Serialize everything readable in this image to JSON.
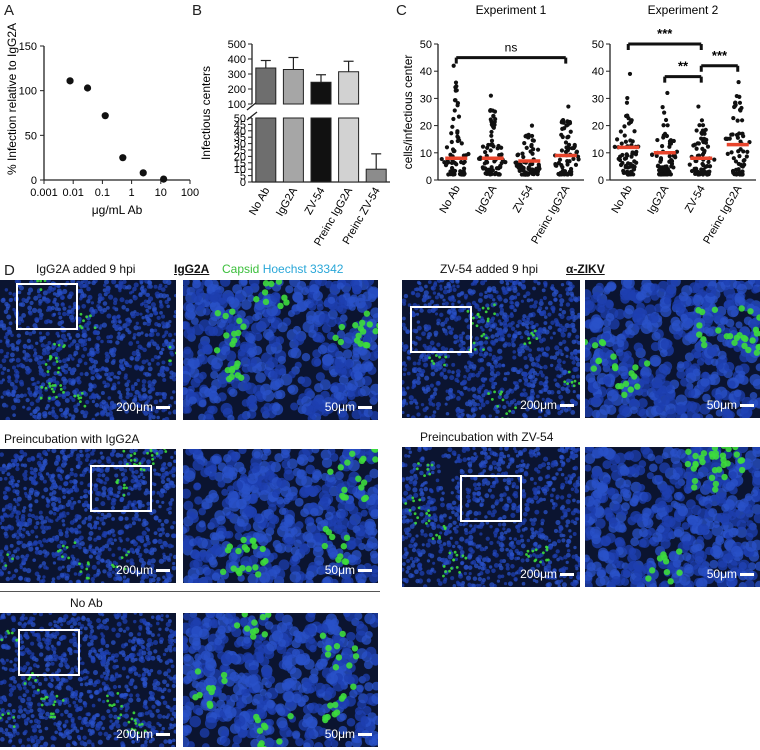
{
  "panels": {
    "A": "A",
    "B": "B",
    "C": "C",
    "D": "D"
  },
  "chart_data": [
    {
      "type": "scatter",
      "panel": "A",
      "xlabel": "μg/mL Ab",
      "ylabel": "% Infection relative to IgG2A",
      "xscale": "log",
      "xlim": [
        0.001,
        100
      ],
      "ylim": [
        0,
        150
      ],
      "xticks": [
        "0.001",
        "0.01",
        "0.1",
        "1",
        "10",
        "100"
      ],
      "yticks": [
        "0",
        "50",
        "100",
        "150"
      ],
      "x": [
        0.0078,
        0.031,
        0.125,
        0.5,
        2.5,
        12.5
      ],
      "y": [
        111,
        103,
        72,
        25,
        8,
        1
      ]
    },
    {
      "type": "bar",
      "panel": "B",
      "ylabel": "Infectious centers",
      "categories": [
        "No Ab",
        "IgG2A",
        "ZV-54",
        "Preinc IgG2A",
        "Preinc ZV-54"
      ],
      "values": [
        340,
        330,
        245,
        315,
        10
      ],
      "errors": [
        50,
        80,
        50,
        70,
        12
      ],
      "bar_colors": [
        "#6e6e6e",
        "#a6a6a6",
        "#111111",
        "#d2d2d2",
        "#8c8c8c"
      ],
      "broken_axis": true,
      "yticks_upper": [
        "100",
        "200",
        "300",
        "400",
        "500"
      ],
      "yticks_lower": [
        "0",
        "5",
        "10",
        "15",
        "20",
        "25",
        "30",
        "35",
        "40",
        "45",
        "50"
      ]
    },
    {
      "type": "scatter",
      "panel": "C",
      "title": "Experiment 1",
      "ylabel": "cells/infectious center",
      "categories": [
        "No Ab",
        "IgG2A",
        "ZV-54",
        "Preinc IgG2A"
      ],
      "ylim": [
        0,
        50
      ],
      "yticks": [
        "0",
        "10",
        "20",
        "30",
        "40",
        "50"
      ],
      "medians": [
        8,
        8,
        7,
        9
      ],
      "max": [
        42,
        31,
        20,
        27
      ],
      "significance": [
        {
          "from": 0,
          "to": 3,
          "label": "ns"
        }
      ]
    },
    {
      "type": "scatter",
      "panel": "C",
      "title": "Experiment 2",
      "categories": [
        "No Ab",
        "IgG2A",
        "ZV-54",
        "Preinc IgG2A"
      ],
      "ylim": [
        0,
        50
      ],
      "yticks": [
        "0",
        "10",
        "20",
        "30",
        "40",
        "50"
      ],
      "medians": [
        12,
        10,
        8,
        13
      ],
      "max": [
        39,
        32,
        27,
        36
      ],
      "significance": [
        {
          "from": 0,
          "to": 2,
          "label": "***"
        },
        {
          "from": 1,
          "to": 2,
          "label": "**"
        },
        {
          "from": 2,
          "to": 3,
          "label": "***"
        }
      ]
    }
  ],
  "microscopy": {
    "group_left_title": "IgG2A",
    "group_right_title": "α-ZIKV",
    "stain_capsid": "Capsid",
    "stain_hoechst": "Hoechst 33342",
    "capsid_color": "#3ddc3d",
    "hoechst_color": "#33b8e0",
    "left_top_label": "IgG2A added 9 hpi",
    "left_mid_label": "Preincubation with IgG2A",
    "left_bottom_label": "No Ab",
    "right_top_label": "ZV-54 added 9 hpi",
    "right_mid_label": "Preincubation with ZV-54",
    "scale_large": "200μm",
    "scale_small": "50μm"
  }
}
